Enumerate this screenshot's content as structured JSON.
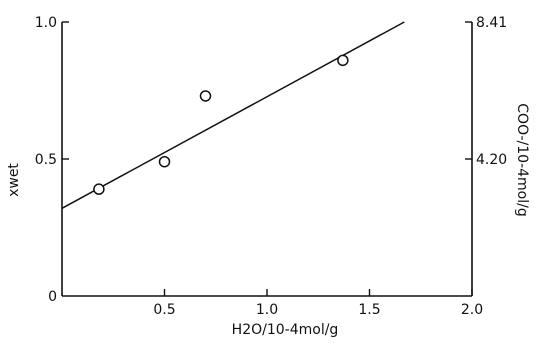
{
  "chart_data": {
    "type": "scatter",
    "xlabel": "H2O/10-4mol/g",
    "ylabel": "xwet",
    "y2label": "COO-/10-4mol/g",
    "xlim": [
      0,
      2.0
    ],
    "ylim": [
      0,
      1.0
    ],
    "x_ticks": [
      {
        "value": 0.5,
        "label": "0.5"
      },
      {
        "value": 1.0,
        "label": "1.0"
      },
      {
        "value": 1.5,
        "label": "1.5"
      },
      {
        "value": 2.0,
        "label": "2.0"
      }
    ],
    "y_ticks": [
      {
        "value": 0,
        "label": "0"
      },
      {
        "value": 0.5,
        "label": "0.5"
      },
      {
        "value": 1.0,
        "label": "1.0"
      }
    ],
    "y2_ticks": [
      {
        "value": 0.5,
        "label": "4.20"
      },
      {
        "value": 1.0,
        "label": "8.41"
      }
    ],
    "points": [
      {
        "x": 0.18,
        "y": 0.39
      },
      {
        "x": 0.5,
        "y": 0.49
      },
      {
        "x": 0.7,
        "y": 0.73
      },
      {
        "x": 1.37,
        "y": 0.86
      }
    ],
    "fit_line": {
      "x": [
        0,
        1.67
      ],
      "y": [
        0.32,
        1.0
      ]
    },
    "grid": false,
    "legend": "none"
  }
}
